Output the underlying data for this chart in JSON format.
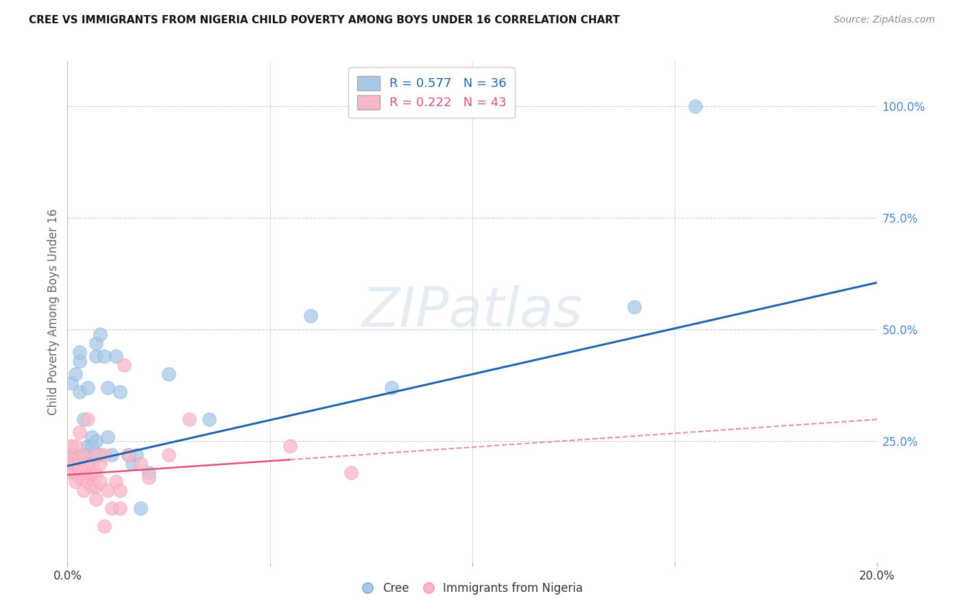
{
  "title": "CREE VS IMMIGRANTS FROM NIGERIA CHILD POVERTY AMONG BOYS UNDER 16 CORRELATION CHART",
  "source": "Source: ZipAtlas.com",
  "ylabel": "Child Poverty Among Boys Under 16",
  "cree_R": 0.577,
  "cree_N": 36,
  "nigeria_R": 0.222,
  "nigeria_N": 43,
  "xlim": [
    0.0,
    0.2
  ],
  "ylim": [
    -0.02,
    1.1
  ],
  "plot_ylim": [
    0.0,
    1.1
  ],
  "right_yticks": [
    0.0,
    0.25,
    0.5,
    0.75,
    1.0
  ],
  "right_ytick_labels": [
    "",
    "25.0%",
    "50.0%",
    "75.0%",
    "100.0%"
  ],
  "hgrid_ticks": [
    0.25,
    0.5,
    0.75,
    1.0
  ],
  "cree_color": "#a8c8e8",
  "cree_edge_color": "#6baed6",
  "nigeria_color": "#f9b8c8",
  "nigeria_edge_color": "#fc8fa8",
  "cree_line_color": "#2166ac",
  "nigeria_line_color": "#e05070",
  "nigeria_dash_color": "#e090a8",
  "watermark_text": "ZIPatlas",
  "trend_intercept_cree": 0.195,
  "trend_slope_cree": 2.05,
  "trend_intercept_nigeria": 0.175,
  "trend_slope_nigeria": 0.62,
  "cree_x": [
    0.001,
    0.001,
    0.002,
    0.002,
    0.003,
    0.003,
    0.003,
    0.004,
    0.004,
    0.005,
    0.005,
    0.005,
    0.006,
    0.006,
    0.007,
    0.007,
    0.007,
    0.008,
    0.008,
    0.009,
    0.01,
    0.01,
    0.011,
    0.012,
    0.013,
    0.015,
    0.016,
    0.017,
    0.018,
    0.02,
    0.025,
    0.035,
    0.06,
    0.08,
    0.14,
    0.155
  ],
  "cree_y": [
    0.22,
    0.38,
    0.22,
    0.4,
    0.43,
    0.45,
    0.36,
    0.3,
    0.22,
    0.37,
    0.22,
    0.24,
    0.26,
    0.24,
    0.44,
    0.47,
    0.25,
    0.49,
    0.22,
    0.44,
    0.37,
    0.26,
    0.22,
    0.44,
    0.36,
    0.22,
    0.2,
    0.22,
    0.1,
    0.18,
    0.4,
    0.3,
    0.53,
    0.37,
    0.55,
    1.0
  ],
  "nigeria_x": [
    0.001,
    0.001,
    0.001,
    0.001,
    0.002,
    0.002,
    0.002,
    0.002,
    0.003,
    0.003,
    0.003,
    0.003,
    0.004,
    0.004,
    0.004,
    0.005,
    0.005,
    0.005,
    0.005,
    0.006,
    0.006,
    0.006,
    0.007,
    0.007,
    0.007,
    0.007,
    0.008,
    0.008,
    0.009,
    0.009,
    0.01,
    0.011,
    0.012,
    0.013,
    0.013,
    0.014,
    0.015,
    0.018,
    0.02,
    0.025,
    0.03,
    0.055,
    0.07
  ],
  "nigeria_y": [
    0.18,
    0.2,
    0.22,
    0.24,
    0.16,
    0.18,
    0.2,
    0.24,
    0.17,
    0.19,
    0.21,
    0.27,
    0.14,
    0.17,
    0.22,
    0.16,
    0.18,
    0.2,
    0.3,
    0.15,
    0.18,
    0.2,
    0.12,
    0.15,
    0.18,
    0.22,
    0.16,
    0.2,
    0.06,
    0.22,
    0.14,
    0.1,
    0.16,
    0.1,
    0.14,
    0.42,
    0.22,
    0.2,
    0.17,
    0.22,
    0.3,
    0.24,
    0.18
  ]
}
